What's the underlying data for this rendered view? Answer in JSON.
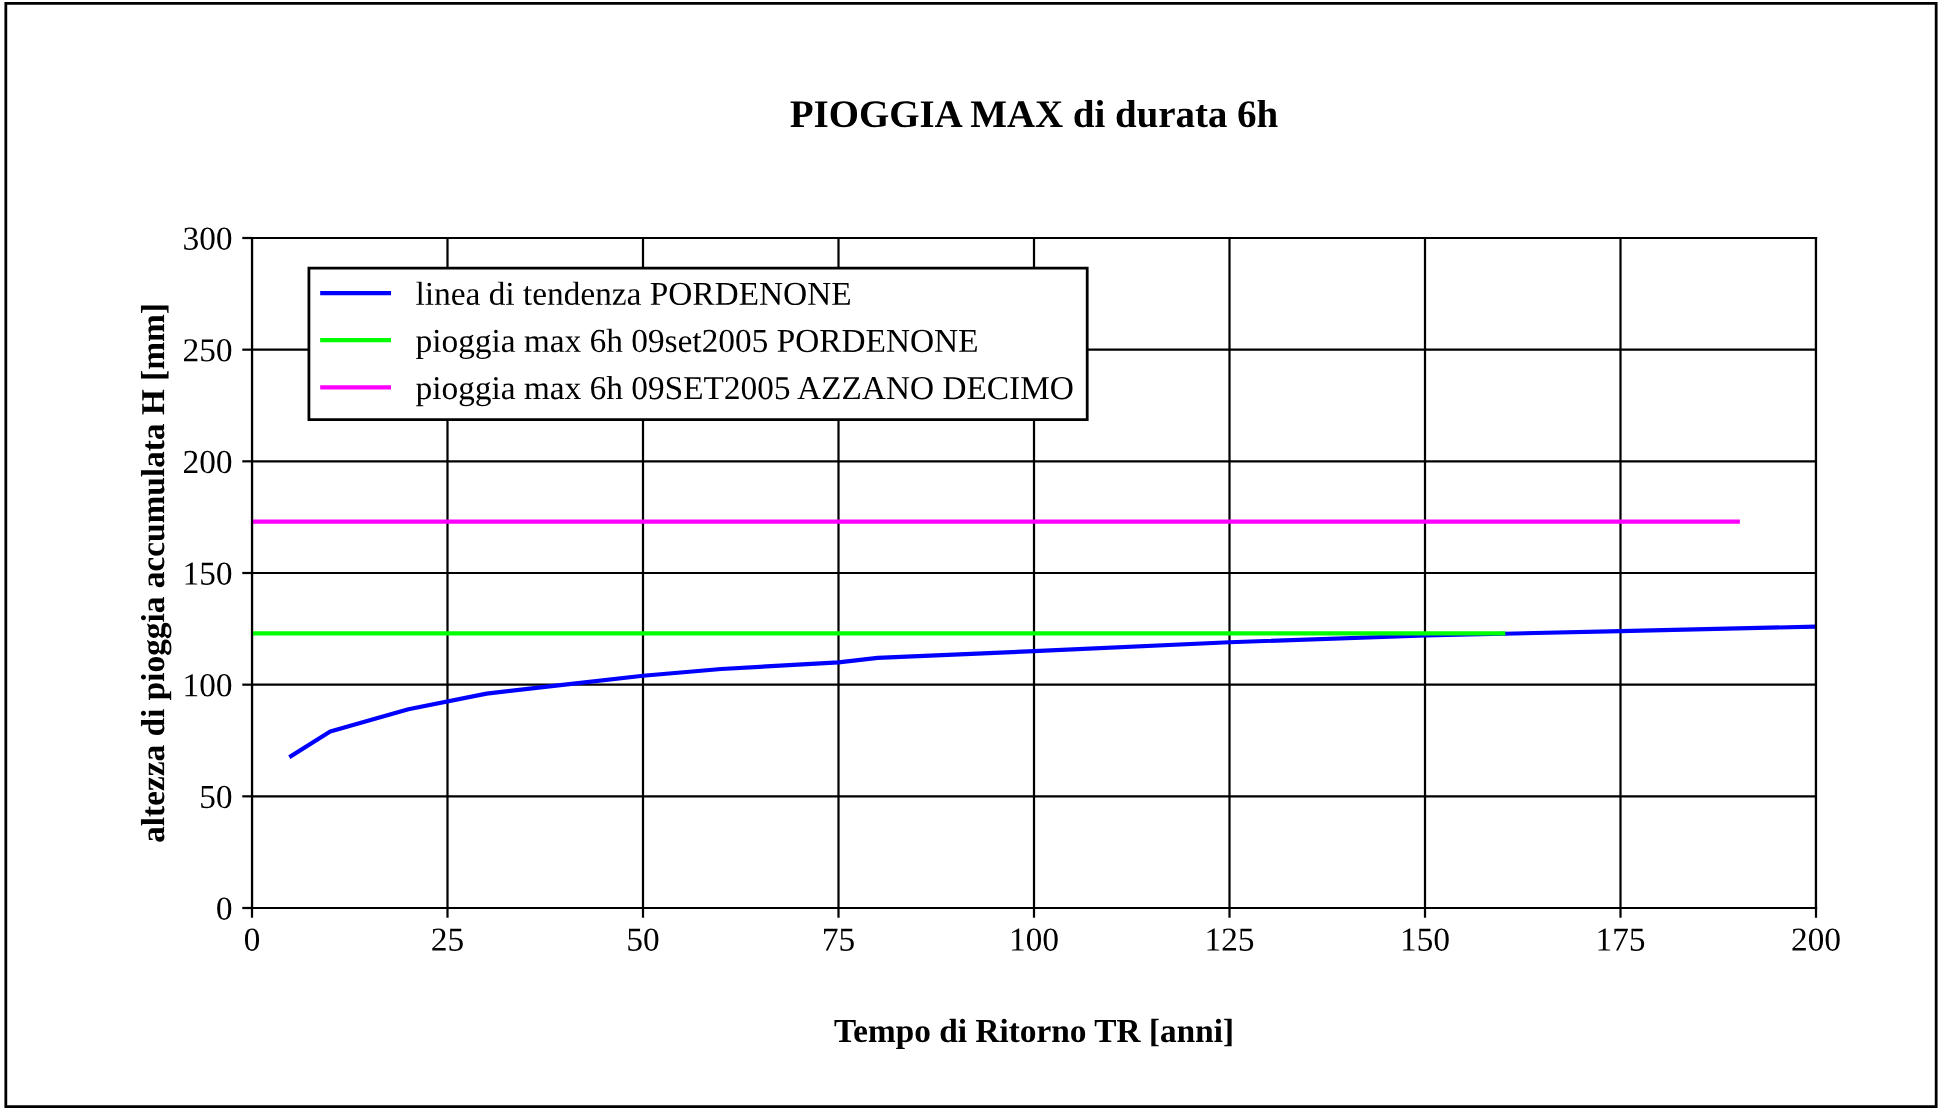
{
  "chart_data": {
    "type": "line",
    "title": "PIOGGIA MAX di durata 6h",
    "xlabel": "Tempo di Ritorno TR [anni]",
    "ylabel": "altezza di pioggia accumulata H [mm]",
    "xlim": [
      0,
      200
    ],
    "xticks": [
      0,
      25,
      50,
      75,
      100,
      125,
      150,
      175,
      200
    ],
    "ylim": [
      0,
      300
    ],
    "yticks": [
      0,
      50,
      100,
      150,
      200,
      250,
      300
    ],
    "grid": true,
    "legend": "top left",
    "marker": "none",
    "line_style": "solid",
    "series": [
      {
        "name": "linea di tendenza PORDENONE",
        "color": "#0000ff",
        "x": [
          5,
          10,
          20,
          30,
          40,
          50,
          60,
          75,
          80,
          100,
          125,
          150,
          175,
          200
        ],
        "values": [
          68,
          79,
          89,
          96,
          100,
          104,
          107,
          110,
          112,
          115,
          119,
          122,
          124,
          126
        ]
      },
      {
        "name": "pioggia max 6h 09set2005 PORDENONE",
        "color": "#00ff00",
        "x": [
          0,
          160
        ],
        "values": [
          123,
          123
        ]
      },
      {
        "name": "pioggia max 6h 09SET2005 AZZANO DECIMO",
        "color": "#ff00ff",
        "x": [
          0,
          190
        ],
        "values": [
          173,
          173
        ]
      }
    ]
  }
}
